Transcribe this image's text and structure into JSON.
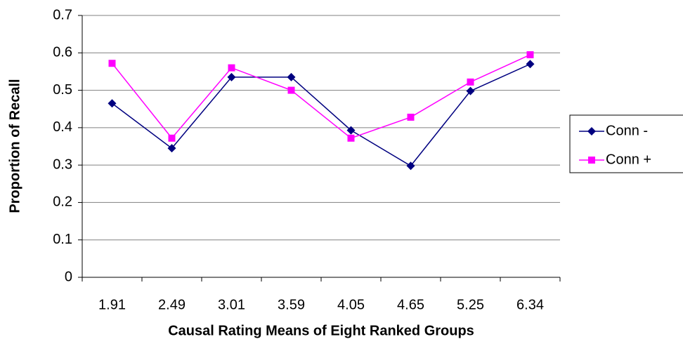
{
  "chart_data": {
    "type": "line",
    "x_label": "Causal Rating Means of Eight Ranked Groups",
    "y_label": "Proportion of Recall",
    "categories": [
      "1.91",
      "2.49",
      "3.01",
      "3.59",
      "4.05",
      "4.65",
      "5.25",
      "6.34"
    ],
    "series": [
      {
        "name": "Conn -",
        "color": "#000080",
        "marker": "diamond",
        "values": [
          0.465,
          0.345,
          0.535,
          0.535,
          0.393,
          0.298,
          0.498,
          0.57
        ]
      },
      {
        "name": "Conn +",
        "color": "#ff00ff",
        "marker": "square",
        "values": [
          0.572,
          0.372,
          0.56,
          0.5,
          0.372,
          0.428,
          0.522,
          0.595
        ]
      }
    ],
    "ylim": [
      0,
      0.7
    ],
    "yticks": [
      0,
      0.1,
      0.2,
      0.3,
      0.4,
      0.5,
      0.6,
      0.7
    ],
    "grid": true,
    "legend": "right"
  }
}
